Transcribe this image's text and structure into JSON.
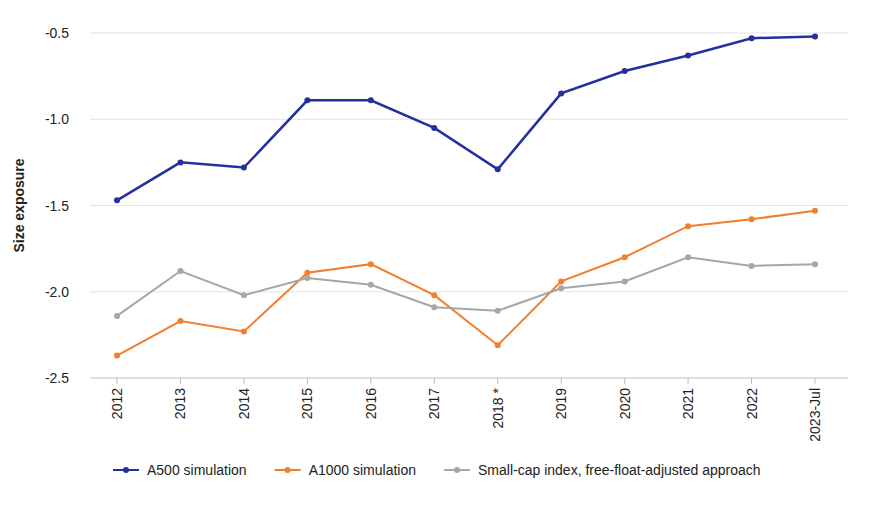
{
  "chart_data": {
    "type": "line",
    "y_label": "Size exposure",
    "categories": [
      "2012",
      "2013",
      "2014",
      "2015",
      "2016",
      "2017",
      "2018 *",
      "2019",
      "2020",
      "2021",
      "2022",
      "2023-Jul"
    ],
    "series": [
      {
        "name": "A500 simulation",
        "color": "#23309e",
        "marker": "circle",
        "values": [
          -1.47,
          -1.25,
          -1.28,
          -0.89,
          -0.89,
          -1.05,
          -1.29,
          -0.85,
          -0.72,
          -0.63,
          -0.53,
          -0.52
        ]
      },
      {
        "name": "A1000 simulation",
        "color": "#f07f2e",
        "marker": "circle",
        "values": [
          -2.37,
          -2.17,
          -2.23,
          -1.89,
          -1.84,
          -2.02,
          -2.31,
          -1.94,
          -1.8,
          -1.62,
          -1.58,
          -1.53
        ]
      },
      {
        "name": "Small-cap index, free-float-adjusted approach",
        "color": "#a6a6a6",
        "marker": "circle",
        "values": [
          -2.14,
          -1.88,
          -2.02,
          -1.92,
          -1.96,
          -2.09,
          -2.11,
          -1.98,
          -1.94,
          -1.8,
          -1.85,
          -1.84
        ]
      }
    ],
    "ylim": [
      -2.5,
      -0.5
    ],
    "yticks": [
      -2.5,
      {
        "value": -2.0,
        "label": "-2.0"
      },
      -1.5,
      {
        "value": -1.0,
        "label": "-1.0"
      },
      -0.5
    ],
    "grid": true,
    "legend": "bottom"
  }
}
